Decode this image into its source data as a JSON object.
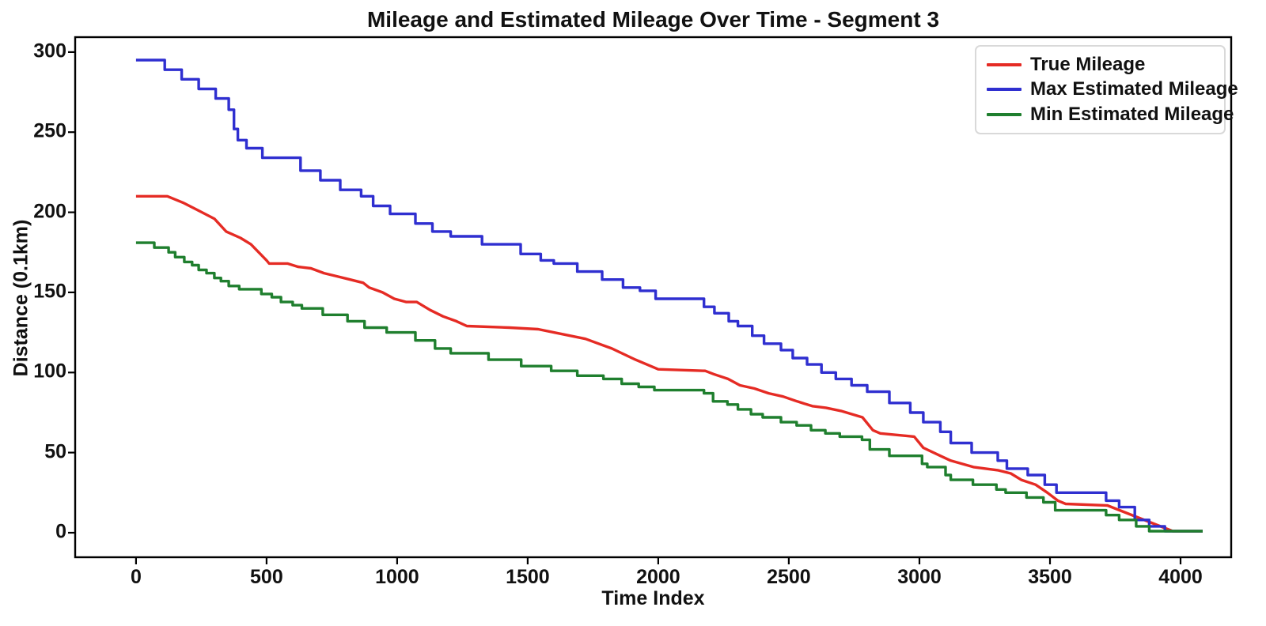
{
  "chart_data": {
    "type": "line",
    "title": "Mileage and Estimated Mileage Over Time - Segment 3",
    "xlabel": "Time Index",
    "ylabel": "Distance (0.1km)",
    "x_ticks": [
      0,
      500,
      1000,
      1500,
      2000,
      2500,
      3000,
      3500,
      4000
    ],
    "y_ticks": [
      0,
      50,
      100,
      150,
      200,
      250,
      300
    ],
    "xlim": [
      -233,
      4194
    ],
    "ylim": [
      -15.3,
      309.3
    ],
    "grid": false,
    "legend_position": "upper right",
    "axis_color": "#000000",
    "series": [
      {
        "name": "True Mileage",
        "color": "#e52b24",
        "style": "line",
        "points": [
          [
            0,
            210
          ],
          [
            120,
            210
          ],
          [
            180,
            206
          ],
          [
            240,
            201
          ],
          [
            300,
            196
          ],
          [
            345,
            188
          ],
          [
            400,
            184
          ],
          [
            440,
            180
          ],
          [
            500,
            170
          ],
          [
            510,
            168
          ],
          [
            580,
            168
          ],
          [
            620,
            166
          ],
          [
            670,
            165
          ],
          [
            720,
            162
          ],
          [
            770,
            160
          ],
          [
            820,
            158
          ],
          [
            870,
            156
          ],
          [
            893,
            153
          ],
          [
            944,
            150
          ],
          [
            989,
            146
          ],
          [
            1035,
            144
          ],
          [
            1075,
            144
          ],
          [
            1126,
            139
          ],
          [
            1176,
            135
          ],
          [
            1227,
            132
          ],
          [
            1267,
            129
          ],
          [
            1430,
            128
          ],
          [
            1540,
            127
          ],
          [
            1630,
            124
          ],
          [
            1721,
            121
          ],
          [
            1822,
            115
          ],
          [
            1913,
            108
          ],
          [
            2000,
            102
          ],
          [
            2180,
            101
          ],
          [
            2212,
            99
          ],
          [
            2267,
            96
          ],
          [
            2313,
            92
          ],
          [
            2368,
            90
          ],
          [
            2423,
            87
          ],
          [
            2478,
            85
          ],
          [
            2532,
            82
          ],
          [
            2590,
            79
          ],
          [
            2642,
            78
          ],
          [
            2700,
            76
          ],
          [
            2782,
            72
          ],
          [
            2822,
            64
          ],
          [
            2850,
            62
          ],
          [
            2980,
            60
          ],
          [
            3015,
            53
          ],
          [
            3080,
            48
          ],
          [
            3120,
            45
          ],
          [
            3207,
            41
          ],
          [
            3300,
            39
          ],
          [
            3350,
            37
          ],
          [
            3390,
            33
          ],
          [
            3445,
            30
          ],
          [
            3490,
            25
          ],
          [
            3530,
            20
          ],
          [
            3560,
            18
          ],
          [
            3720,
            17
          ],
          [
            3970,
            1
          ],
          [
            4085,
            1
          ]
        ]
      },
      {
        "name": "Max Estimated Mileage",
        "color": "#2f2fd0",
        "style": "steps",
        "t_end": 4085,
        "plateaus": [
          [
            0,
            295
          ],
          [
            110,
            289
          ],
          [
            175,
            283
          ],
          [
            240,
            277
          ],
          [
            305,
            271
          ],
          [
            355,
            264
          ],
          [
            375,
            252
          ],
          [
            390,
            245
          ],
          [
            423,
            240
          ],
          [
            484,
            234
          ],
          [
            630,
            226
          ],
          [
            706,
            220
          ],
          [
            782,
            214
          ],
          [
            862,
            210
          ],
          [
            908,
            204
          ],
          [
            973,
            199
          ],
          [
            1070,
            193
          ],
          [
            1135,
            188
          ],
          [
            1205,
            185
          ],
          [
            1325,
            180
          ],
          [
            1473,
            174
          ],
          [
            1550,
            170
          ],
          [
            1600,
            168
          ],
          [
            1690,
            163
          ],
          [
            1785,
            158
          ],
          [
            1865,
            153
          ],
          [
            1930,
            151
          ],
          [
            1990,
            146
          ],
          [
            2175,
            141
          ],
          [
            2215,
            137
          ],
          [
            2270,
            132
          ],
          [
            2305,
            129
          ],
          [
            2360,
            123
          ],
          [
            2405,
            118
          ],
          [
            2470,
            114
          ],
          [
            2515,
            109
          ],
          [
            2570,
            105
          ],
          [
            2625,
            100
          ],
          [
            2680,
            96
          ],
          [
            2740,
            92
          ],
          [
            2800,
            88
          ],
          [
            2885,
            81
          ],
          [
            2965,
            75
          ],
          [
            3015,
            69
          ],
          [
            3080,
            63
          ],
          [
            3120,
            56
          ],
          [
            3200,
            50
          ],
          [
            3300,
            45
          ],
          [
            3335,
            40
          ],
          [
            3415,
            36
          ],
          [
            3480,
            30
          ],
          [
            3525,
            25
          ],
          [
            3715,
            20
          ],
          [
            3765,
            16
          ],
          [
            3825,
            8
          ],
          [
            3880,
            4
          ],
          [
            3940,
            1
          ]
        ]
      },
      {
        "name": "Min Estimated Mileage",
        "color": "#1f7f2e",
        "style": "steps",
        "t_end": 4085,
        "plateaus": [
          [
            0,
            181
          ],
          [
            70,
            178
          ],
          [
            125,
            175
          ],
          [
            150,
            172
          ],
          [
            185,
            169
          ],
          [
            215,
            167
          ],
          [
            240,
            164
          ],
          [
            270,
            162
          ],
          [
            300,
            159
          ],
          [
            325,
            157
          ],
          [
            355,
            154
          ],
          [
            395,
            152
          ],
          [
            480,
            149
          ],
          [
            520,
            147
          ],
          [
            555,
            144
          ],
          [
            600,
            142
          ],
          [
            635,
            140
          ],
          [
            715,
            136
          ],
          [
            810,
            132
          ],
          [
            875,
            128
          ],
          [
            960,
            125
          ],
          [
            1070,
            120
          ],
          [
            1145,
            115
          ],
          [
            1205,
            112
          ],
          [
            1350,
            108
          ],
          [
            1475,
            104
          ],
          [
            1590,
            101
          ],
          [
            1690,
            98
          ],
          [
            1790,
            96
          ],
          [
            1860,
            93
          ],
          [
            1925,
            91
          ],
          [
            1985,
            89
          ],
          [
            2175,
            87
          ],
          [
            2210,
            82
          ],
          [
            2265,
            80
          ],
          [
            2305,
            77
          ],
          [
            2355,
            74
          ],
          [
            2400,
            72
          ],
          [
            2470,
            69
          ],
          [
            2530,
            67
          ],
          [
            2585,
            64
          ],
          [
            2640,
            62
          ],
          [
            2695,
            60
          ],
          [
            2780,
            58
          ],
          [
            2810,
            52
          ],
          [
            2885,
            48
          ],
          [
            3010,
            43
          ],
          [
            3030,
            41
          ],
          [
            3100,
            36
          ],
          [
            3120,
            33
          ],
          [
            3205,
            30
          ],
          [
            3295,
            27
          ],
          [
            3330,
            25
          ],
          [
            3410,
            22
          ],
          [
            3475,
            19
          ],
          [
            3520,
            14
          ],
          [
            3715,
            11
          ],
          [
            3765,
            8
          ],
          [
            3830,
            4
          ],
          [
            3880,
            1
          ]
        ]
      }
    ]
  }
}
